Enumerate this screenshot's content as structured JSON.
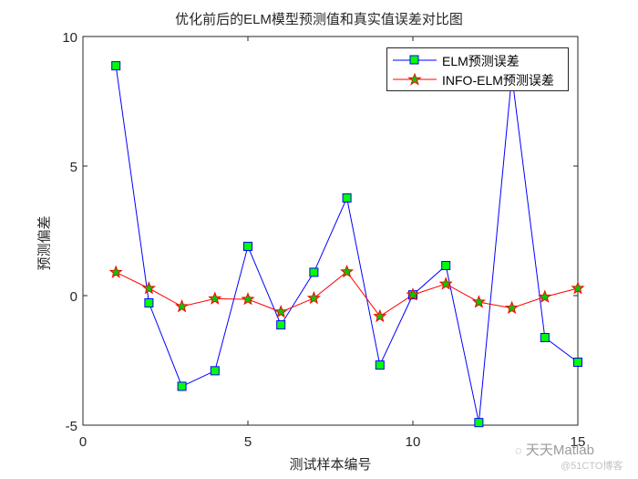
{
  "chart_data": {
    "type": "line",
    "title": "优化前后的ELM模型预测值和真实值误差对比图",
    "xlabel": "测试样本编号",
    "ylabel": "预测偏差",
    "xlim": [
      0,
      15
    ],
    "ylim": [
      -5,
      10
    ],
    "xticks": [
      0,
      5,
      10,
      15
    ],
    "yticks": [
      -5,
      0,
      5,
      10
    ],
    "grid": false,
    "legend_position": "upper right",
    "x": [
      1,
      2,
      3,
      4,
      5,
      6,
      7,
      8,
      9,
      10,
      11,
      12,
      13,
      14,
      15
    ],
    "series": [
      {
        "name": "ELM预测误差",
        "color": "#0000ff",
        "marker": "square",
        "marker_fill": "#00ff00",
        "values": [
          8.87,
          -0.28,
          -3.5,
          -2.9,
          1.9,
          -1.13,
          0.9,
          3.77,
          -2.68,
          0.03,
          1.16,
          -4.9,
          8.5,
          -1.62,
          -2.57
        ]
      },
      {
        "name": "INFO-ELM预测误差",
        "color": "#ff0000",
        "marker": "star",
        "marker_fill": "#00cc00",
        "values": [
          0.9,
          0.28,
          -0.42,
          -0.12,
          -0.14,
          -0.63,
          -0.1,
          0.92,
          -0.8,
          0.03,
          0.45,
          -0.25,
          -0.48,
          -0.05,
          0.28
        ]
      }
    ]
  },
  "watermark": {
    "line1": "天天Matlab",
    "line2": "@51CTO博客"
  },
  "icons": {
    "watermark_logo": "wechat-icon"
  }
}
